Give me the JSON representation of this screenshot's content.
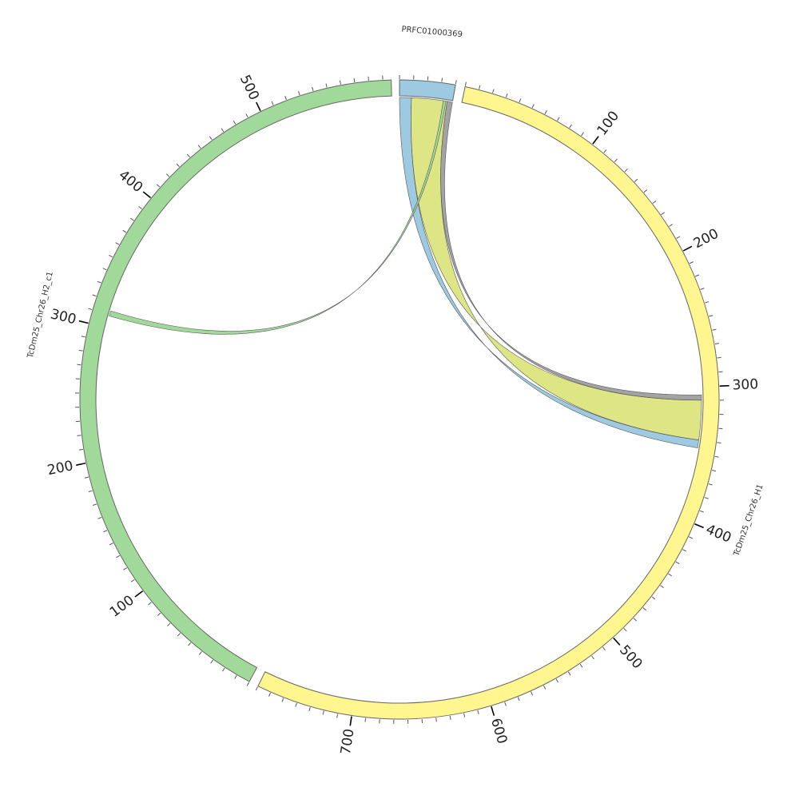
{
  "chart_data": {
    "type": "chord",
    "title": "",
    "units_per_minor_tick": 10,
    "units_per_major_tick": 100,
    "segments": [
      {
        "name": "PRFC01000369",
        "length": 40,
        "color": "#9ecae1"
      },
      {
        "name": "TcDm25_Chr26_H1",
        "length": 770,
        "color": "#fff68f"
      },
      {
        "name": "TcDm25_Chr26_H2_c1",
        "length": 596,
        "color": "#a1d99b"
      }
    ],
    "links": [
      {
        "source": "PRFC01000369",
        "source_range": [
          0,
          9
        ],
        "target": "TcDm25_Chr26_H1",
        "target_range": [
          340,
          346
        ],
        "color": "#9ecae1"
      },
      {
        "source": "PRFC01000369",
        "source_range": [
          9,
          36
        ],
        "target": "TcDm25_Chr26_H1",
        "target_range": [
          310,
          340
        ],
        "color": "#dde584"
      },
      {
        "source": "PRFC01000369",
        "source_range": [
          36,
          40
        ],
        "target": "TcDm25_Chr26_H1",
        "target_range": [
          306,
          310
        ],
        "color": "#a3a3a3"
      },
      {
        "source": "PRFC01000369",
        "source_range": [
          33,
          35
        ],
        "target": "TcDm25_Chr26_H2_c1",
        "target_range": [
          309,
          313
        ],
        "color": "#a1d99b"
      }
    ]
  }
}
